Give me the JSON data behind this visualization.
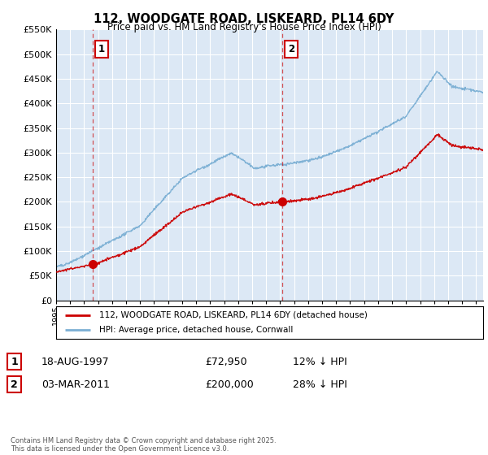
{
  "title": "112, WOODGATE ROAD, LISKEARD, PL14 6DY",
  "subtitle": "Price paid vs. HM Land Registry's House Price Index (HPI)",
  "transactions": [
    {
      "date_str": "18-AUG-1997",
      "year": 1997.63,
      "price": 72950,
      "label": "1",
      "pct": "12% ↓ HPI"
    },
    {
      "date_str": "03-MAR-2011",
      "year": 2011.17,
      "price": 200000,
      "label": "2",
      "pct": "28% ↓ HPI"
    }
  ],
  "red_line_label": "112, WOODGATE ROAD, LISKEARD, PL14 6DY (detached house)",
  "blue_line_label": "HPI: Average price, detached house, Cornwall",
  "footer": "Contains HM Land Registry data © Crown copyright and database right 2025.\nThis data is licensed under the Open Government Licence v3.0.",
  "ylim": [
    0,
    550000
  ],
  "xlim": [
    1995,
    2025.5
  ],
  "yticks": [
    0,
    50000,
    100000,
    150000,
    200000,
    250000,
    300000,
    350000,
    400000,
    450000,
    500000,
    550000
  ],
  "plot_bg": "#dce8f5",
  "fig_bg": "#ffffff",
  "red_color": "#cc0000",
  "blue_color": "#7bafd4",
  "grid_color": "#ffffff",
  "legend1_row": [
    "1",
    "18-AUG-1997",
    "£72,950",
    "12% ↓ HPI"
  ],
  "legend2_row": [
    "2",
    "03-MAR-2011",
    "£200,000",
    "28% ↓ HPI"
  ]
}
